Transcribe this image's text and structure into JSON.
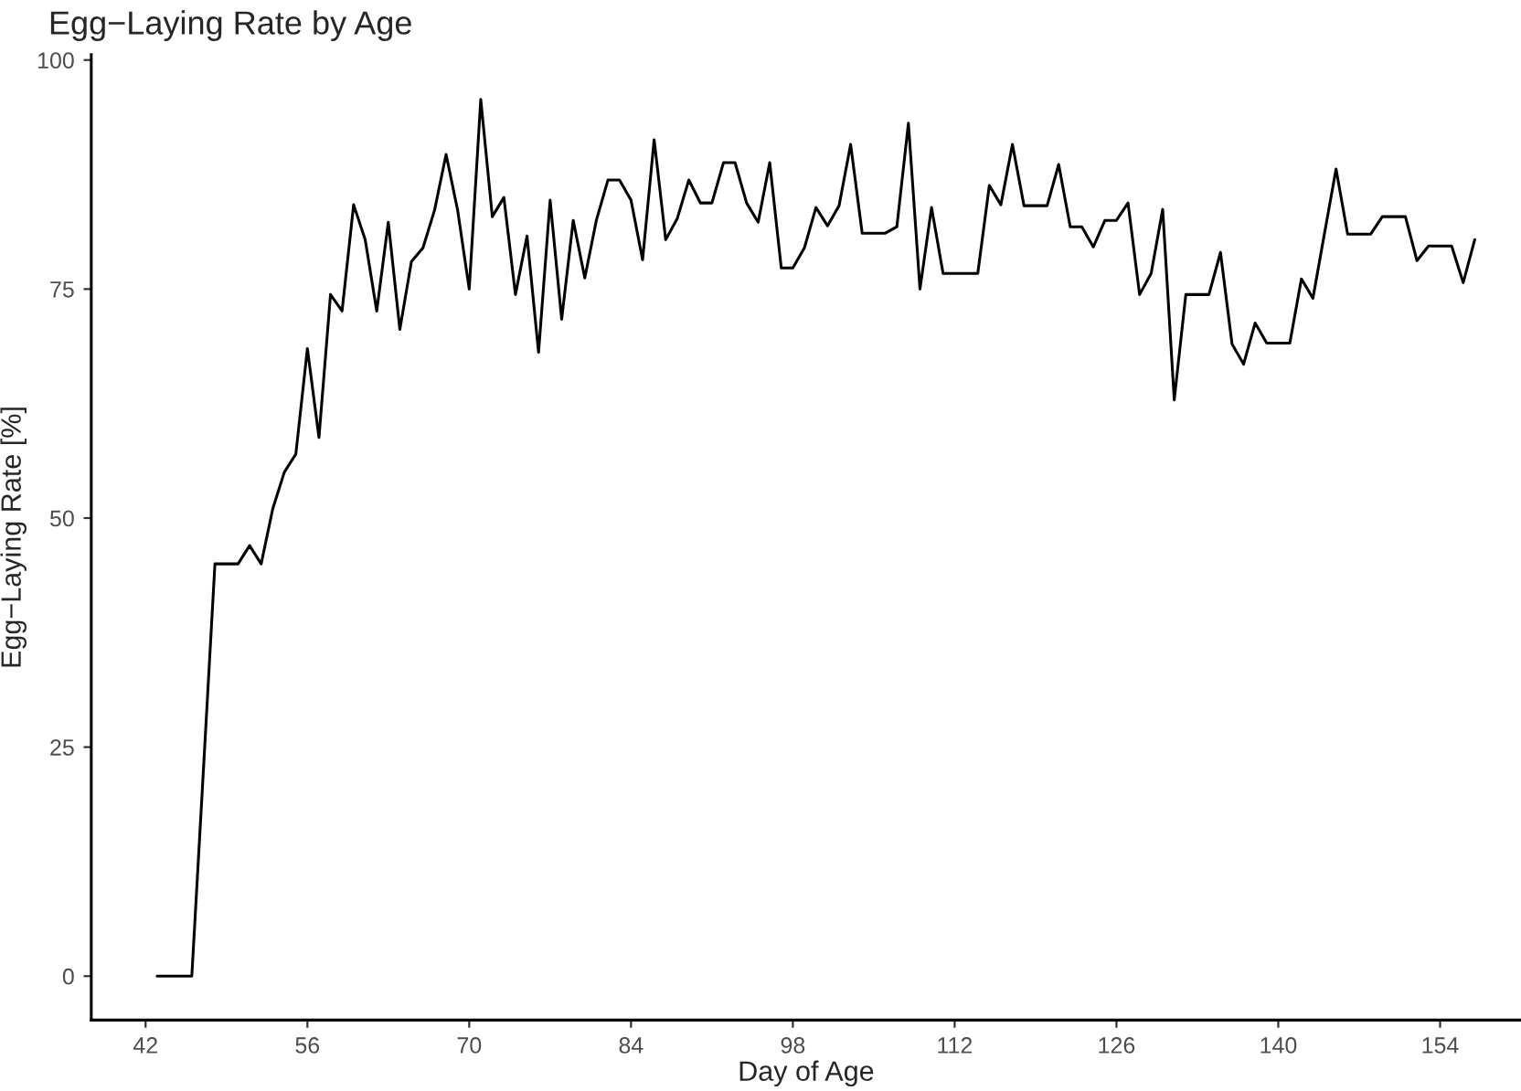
{
  "chart_data": {
    "type": "line",
    "title": "Egg−Laying Rate by Age",
    "xlabel": "Day of Age",
    "ylabel": "Egg−Laying Rate [%]",
    "x": [
      43,
      44,
      45,
      46,
      47,
      48,
      49,
      50,
      51,
      52,
      53,
      54,
      55,
      56,
      57,
      58,
      59,
      60,
      61,
      62,
      63,
      64,
      65,
      66,
      67,
      68,
      69,
      70,
      71,
      72,
      73,
      74,
      75,
      76,
      77,
      78,
      79,
      80,
      81,
      82,
      83,
      84,
      85,
      86,
      87,
      88,
      89,
      90,
      91,
      92,
      93,
      94,
      95,
      96,
      97,
      98,
      99,
      100,
      101,
      102,
      103,
      104,
      105,
      106,
      107,
      108,
      109,
      110,
      111,
      112,
      113,
      114,
      115,
      116,
      117,
      118,
      119,
      120,
      121,
      122,
      123,
      124,
      125,
      126,
      127,
      128,
      129,
      130,
      131,
      132,
      133,
      134,
      135,
      136,
      137,
      138,
      139,
      140,
      141,
      142,
      143,
      144,
      145,
      146,
      147,
      148,
      149,
      150,
      151,
      152,
      153,
      154,
      155,
      156,
      157
    ],
    "series": [
      {
        "color": "#000000",
        "values": [
          0,
          0,
          0,
          0,
          22.4,
          45,
          45,
          45,
          47,
          45,
          51,
          55,
          57,
          68.5,
          58.8,
          74.4,
          72.6,
          84.2,
          80.4,
          72.6,
          82.3,
          70.6,
          78,
          79.5,
          83.6,
          89.7,
          83.6,
          75,
          95.7,
          82.9,
          85,
          74.4,
          80.8,
          68.1,
          84.7,
          71.7,
          82.5,
          76.2,
          82.5,
          86.9,
          86.9,
          84.7,
          78.2,
          91.3,
          80.4,
          82.7,
          86.9,
          84.4,
          84.4,
          88.8,
          88.8,
          84.4,
          82.3,
          88.8,
          77.3,
          77.3,
          79.5,
          83.9,
          81.9,
          84.1,
          90.8,
          81.1,
          81.1,
          81.1,
          81.8,
          93.1,
          75,
          83.9,
          76.7,
          76.7,
          76.7,
          76.7,
          86.3,
          84.2,
          90.8,
          84.1,
          84.1,
          84.1,
          88.6,
          81.8,
          81.8,
          79.6,
          82.5,
          82.5,
          84.4,
          74.4,
          76.7,
          83.7,
          62.9,
          74.4,
          74.4,
          74.4,
          79,
          69,
          66.8,
          71.3,
          69.1,
          69.1,
          69.1,
          76.1,
          74,
          81.1,
          88.1,
          81,
          81,
          81,
          82.9,
          82.9,
          82.9,
          78.1,
          79.7,
          79.7,
          79.7,
          75.7,
          80.4
        ]
      }
    ],
    "xlim": [
      37.3,
      161
    ],
    "ylim": [
      -4.8,
      100.6
    ],
    "xticks": [
      42,
      56,
      70,
      84,
      98,
      112,
      126,
      140,
      154
    ],
    "yticks": [
      0,
      25,
      50,
      75,
      100
    ],
    "grid": false,
    "legend": false,
    "marker": "none",
    "line_style": "solid"
  }
}
